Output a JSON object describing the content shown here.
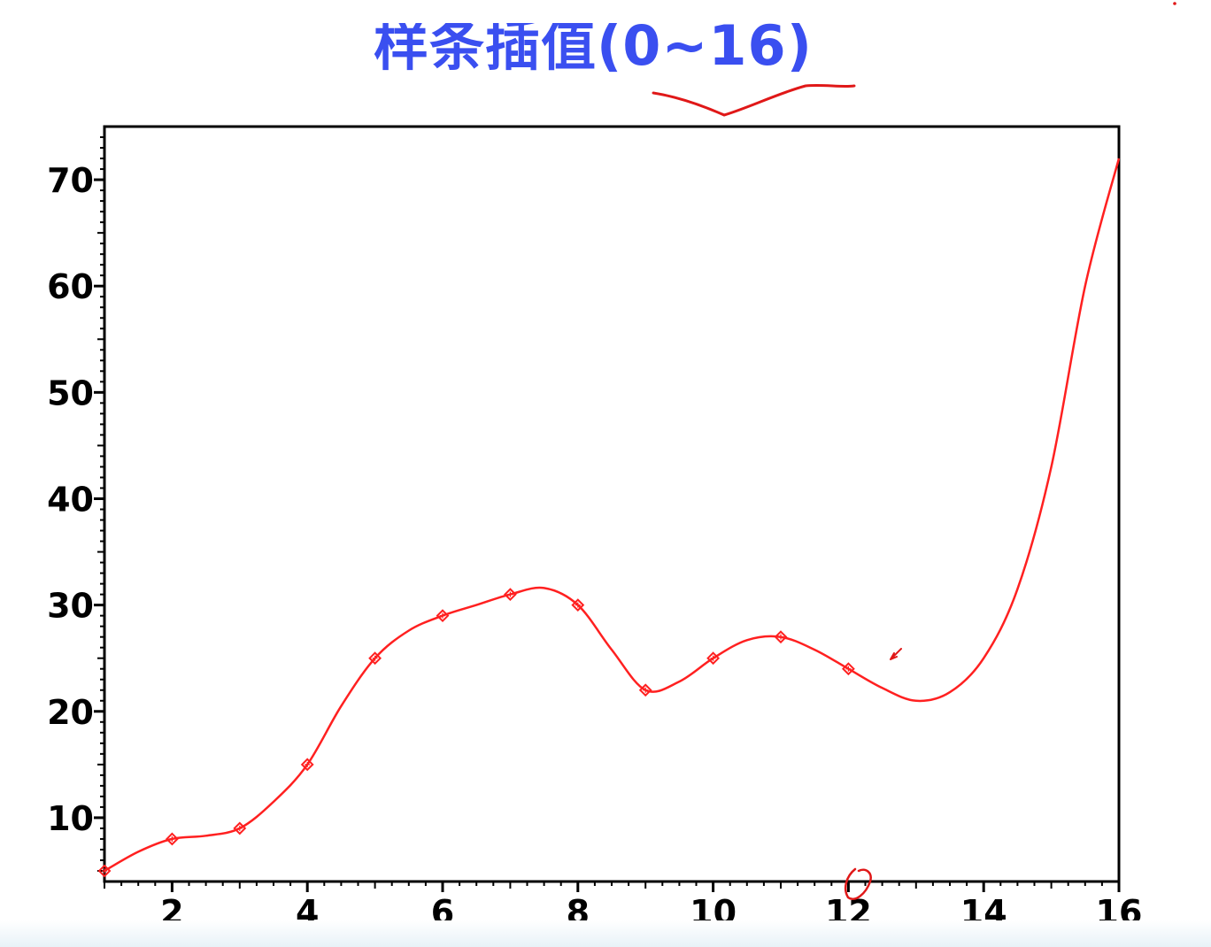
{
  "colors": {
    "title": "#3a4ff0",
    "curve": "#ff2020",
    "axis": "#000000",
    "annotation": "#e01818"
  },
  "chart_data": {
    "type": "line",
    "title": "样条插值(0~16)",
    "xlabel": "",
    "ylabel": "",
    "xlim": [
      1,
      16
    ],
    "ylim": [
      4,
      75
    ],
    "x_ticks": [
      2,
      4,
      6,
      8,
      10,
      12,
      14,
      16
    ],
    "y_ticks": [
      10,
      20,
      30,
      40,
      50,
      60,
      70
    ],
    "grid": false,
    "legend": "none",
    "series": [
      {
        "points_x": [
          1,
          2,
          3,
          4,
          5,
          6,
          7,
          8,
          9,
          10,
          11,
          12
        ],
        "points_y": [
          5,
          8,
          9,
          15,
          25,
          29,
          31,
          30,
          22,
          25,
          27,
          24
        ],
        "curve_x": [
          1,
          1.5,
          2,
          2.5,
          3,
          3.5,
          4,
          4.5,
          5,
          5.5,
          6,
          6.5,
          7,
          7.5,
          8,
          8.5,
          9,
          9.5,
          10,
          10.5,
          11,
          11.5,
          12,
          12.5,
          13,
          13.5,
          14,
          14.5,
          15,
          15.5,
          16
        ],
        "curve_y": [
          5,
          6.8,
          8,
          8.3,
          9,
          11.5,
          15,
          20.5,
          25,
          27.6,
          29,
          30,
          31,
          31.6,
          30,
          25.8,
          22,
          22.8,
          25,
          26.7,
          27,
          25.8,
          24,
          22.2,
          21,
          21.8,
          25,
          31.5,
          43,
          60,
          72
        ]
      }
    ]
  }
}
